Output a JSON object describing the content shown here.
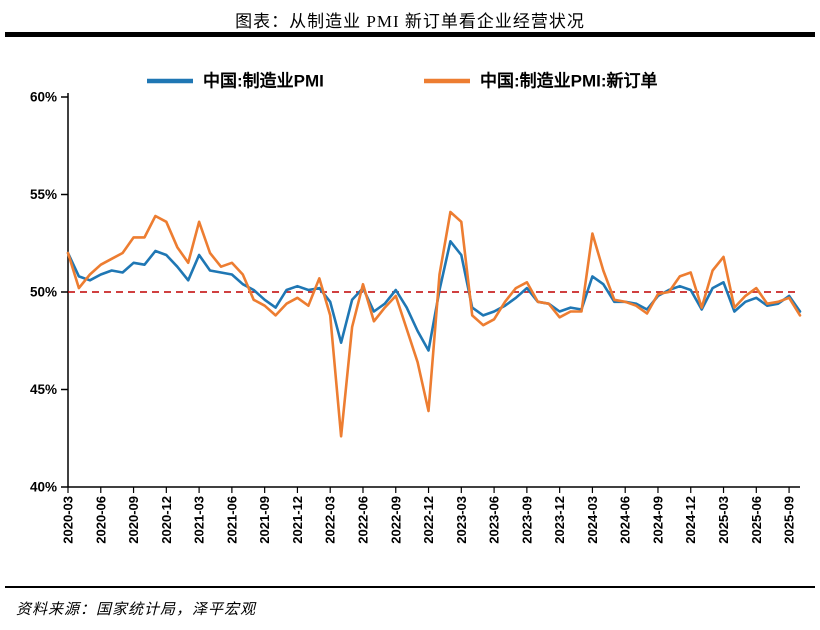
{
  "title": "图表：从制造业 PMI 新订单看企业经营状况",
  "source": "资料来源：国家统计局，泽平宏观",
  "chart_data": {
    "type": "line",
    "title": "图表：从制造业 PMI 新订单看企业经营状况",
    "legend_position": "top",
    "grid": false,
    "ylim": [
      40,
      60
    ],
    "yticks": [
      40,
      45,
      50,
      55,
      60
    ],
    "ytick_labels": [
      "40%",
      "45%",
      "50%",
      "55%",
      "60%"
    ],
    "x_label_every": 3,
    "x_label_rotation": -90,
    "reference_line": {
      "value": 50,
      "color": "#C00000",
      "style": "dashed"
    },
    "x": [
      "2020-03",
      "2020-04",
      "2020-05",
      "2020-06",
      "2020-07",
      "2020-08",
      "2020-09",
      "2020-10",
      "2020-11",
      "2020-12",
      "2021-01",
      "2021-02",
      "2021-03",
      "2021-04",
      "2021-05",
      "2021-06",
      "2021-07",
      "2021-08",
      "2021-09",
      "2021-10",
      "2021-11",
      "2021-12",
      "2022-01",
      "2022-02",
      "2022-03",
      "2022-04",
      "2022-05",
      "2022-06",
      "2022-07",
      "2022-08",
      "2022-09",
      "2022-10",
      "2022-11",
      "2022-12",
      "2023-01",
      "2023-02",
      "2023-03",
      "2023-04",
      "2023-05",
      "2023-06",
      "2023-07",
      "2023-08",
      "2023-09",
      "2023-10",
      "2023-11",
      "2023-12",
      "2024-01",
      "2024-02",
      "2024-03",
      "2024-04",
      "2024-05",
      "2024-06",
      "2024-07",
      "2024-08",
      "2024-09",
      "2024-10",
      "2024-11",
      "2024-12",
      "2025-01",
      "2025-02",
      "2025-03",
      "2025-04",
      "2025-05",
      "2025-06",
      "2025-07",
      "2025-08",
      "2025-09",
      "2025-10"
    ],
    "series": [
      {
        "name": "中国:制造业PMI",
        "color": "#1F77B4",
        "values": [
          52.0,
          50.8,
          50.6,
          50.9,
          51.1,
          51.0,
          51.5,
          51.4,
          52.1,
          51.9,
          51.3,
          50.6,
          51.9,
          51.1,
          51.0,
          50.9,
          50.4,
          50.1,
          49.6,
          49.2,
          50.1,
          50.3,
          50.1,
          50.2,
          49.5,
          47.4,
          49.6,
          50.2,
          49.0,
          49.4,
          50.1,
          49.2,
          48.0,
          47.0,
          50.1,
          52.6,
          51.9,
          49.2,
          48.8,
          49.0,
          49.3,
          49.7,
          50.2,
          49.5,
          49.4,
          49.0,
          49.2,
          49.1,
          50.8,
          50.4,
          49.5,
          49.5,
          49.4,
          49.1,
          49.8,
          50.1,
          50.3,
          50.1,
          49.1,
          50.2,
          50.5,
          49.0,
          49.5,
          49.7,
          49.3,
          49.4,
          49.8,
          49.0
        ]
      },
      {
        "name": "中国:制造业PMI:新订单",
        "color": "#ED7D31",
        "values": [
          52.0,
          50.2,
          50.9,
          51.4,
          51.7,
          52.0,
          52.8,
          52.8,
          53.9,
          53.6,
          52.3,
          51.5,
          53.6,
          52.0,
          51.3,
          51.5,
          50.9,
          49.6,
          49.3,
          48.8,
          49.4,
          49.7,
          49.3,
          50.7,
          48.8,
          42.6,
          48.2,
          50.4,
          48.5,
          49.2,
          49.8,
          48.1,
          46.4,
          43.9,
          50.9,
          54.1,
          53.6,
          48.8,
          48.3,
          48.6,
          49.5,
          50.2,
          50.5,
          49.5,
          49.4,
          48.7,
          49.0,
          49.0,
          53.0,
          51.1,
          49.6,
          49.5,
          49.3,
          48.9,
          49.9,
          50.0,
          50.8,
          51.0,
          49.2,
          51.1,
          51.8,
          49.2,
          49.8,
          50.2,
          49.4,
          49.5,
          49.7,
          48.8
        ]
      }
    ]
  }
}
